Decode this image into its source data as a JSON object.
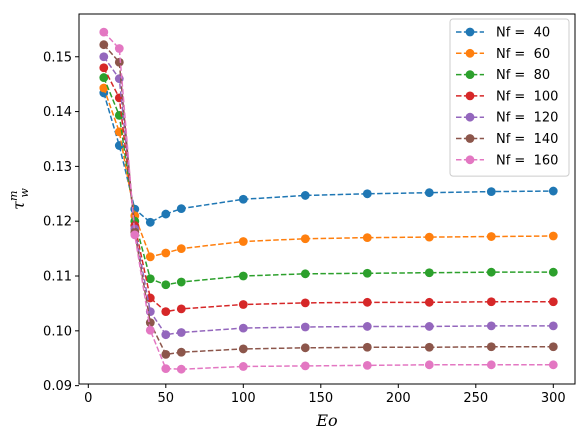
{
  "chart_data": {
    "type": "line",
    "xlabel": "Eo",
    "ylabel": {
      "base": "τ",
      "sup": "m",
      "sub": "w"
    },
    "xlim": [
      -6,
      314
    ],
    "ylim": [
      0.0903,
      0.1578
    ],
    "xticks": [
      "0",
      "50",
      "100",
      "150",
      "200",
      "250",
      "300"
    ],
    "xtick_values": [
      0,
      50,
      100,
      150,
      200,
      250,
      300
    ],
    "yticks": [
      "0.09",
      "0.10",
      "0.11",
      "0.12",
      "0.13",
      "0.14",
      "0.15"
    ],
    "ytick_values": [
      0.09,
      0.1,
      0.11,
      0.12,
      0.13,
      0.14,
      0.15
    ],
    "grid": false,
    "legend_position": "top-right",
    "x": [
      10,
      20,
      30,
      40,
      50,
      60,
      100,
      140,
      180,
      220,
      260,
      300
    ],
    "series": [
      {
        "name": "Nf =  40",
        "color": "#1f77b4",
        "values": [
          0.1434,
          0.1338,
          0.1222,
          0.1198,
          0.1213,
          0.1223,
          0.124,
          0.1247,
          0.125,
          0.1252,
          0.1254,
          0.1255
        ]
      },
      {
        "name": "Nf =  60",
        "color": "#ff7f0e",
        "values": [
          0.1443,
          0.1363,
          0.121,
          0.1135,
          0.1142,
          0.115,
          0.1163,
          0.1168,
          0.117,
          0.1171,
          0.1172,
          0.1173
        ]
      },
      {
        "name": "Nf =  80",
        "color": "#2ca02c",
        "values": [
          0.1462,
          0.1393,
          0.12,
          0.1095,
          0.1084,
          0.1089,
          0.11,
          0.1104,
          0.1105,
          0.1106,
          0.1107,
          0.1107
        ]
      },
      {
        "name": "Nf =  100",
        "color": "#d62728",
        "values": [
          0.148,
          0.1425,
          0.1192,
          0.106,
          0.1035,
          0.104,
          0.1048,
          0.1051,
          0.1052,
          0.1052,
          0.1053,
          0.1053
        ]
      },
      {
        "name": "Nf =  120",
        "color": "#9467bd",
        "values": [
          0.15,
          0.146,
          0.1186,
          0.1035,
          0.0993,
          0.0997,
          0.1005,
          0.1007,
          0.1008,
          0.1008,
          0.1009,
          0.1009
        ]
      },
      {
        "name": "Nf =  140",
        "color": "#8c564b",
        "values": [
          0.1522,
          0.149,
          0.118,
          0.1015,
          0.0957,
          0.0961,
          0.0967,
          0.0969,
          0.097,
          0.097,
          0.0971,
          0.0971
        ]
      },
      {
        "name": "Nf =  160",
        "color": "#e377c2",
        "values": [
          0.1545,
          0.1515,
          0.1175,
          0.1001,
          0.0931,
          0.093,
          0.0935,
          0.0936,
          0.0937,
          0.0938,
          0.0938,
          0.0938
        ]
      }
    ]
  }
}
